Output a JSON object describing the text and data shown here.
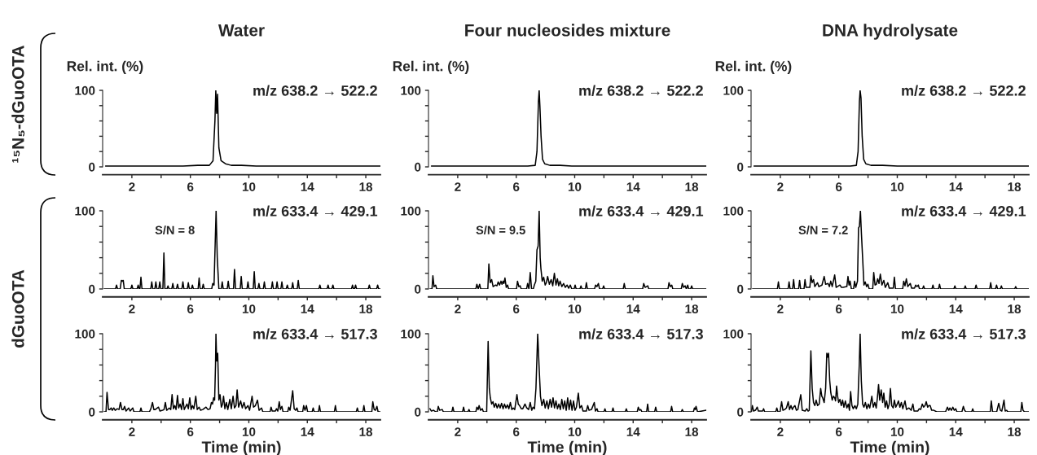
{
  "chart_data": [
    {
      "type": "line",
      "title": "Water",
      "ylabel": "Rel. int. (%)",
      "annotations": [
        "m/z 638.2 → 522.2",
        "¹⁵N₅-dGuoOTA"
      ],
      "xlim": [
        0,
        19
      ],
      "xticks": [
        2,
        {
          "value": 4,
          "label": null
        },
        6,
        {
          "value": 8,
          "label": null
        },
        10,
        {
          "value": 12,
          "label": null
        },
        14,
        {
          "value": 16,
          "label": null
        },
        18
      ],
      "ylim": [
        0,
        100
      ],
      "yticks": [
        0,
        {
          "value": 20,
          "label": null
        },
        {
          "value": 40,
          "label": null
        },
        {
          "value": 60,
          "label": null
        },
        {
          "value": 80,
          "label": null
        },
        100
      ],
      "series": [
        {
          "color": "#000000",
          "x": [
            0.2,
            1.5,
            3,
            4.5,
            5.5,
            6.5,
            7.3,
            7.55,
            7.68,
            7.74,
            7.8,
            7.86,
            7.95,
            8.1,
            8.4,
            8.8,
            9.5,
            10.5,
            13,
            16,
            18.5,
            19
          ],
          "values": [
            1,
            1,
            1,
            1,
            1,
            2,
            2,
            8,
            60,
            100,
            70,
            95,
            25,
            8,
            4,
            2,
            2,
            1,
            1,
            1,
            1,
            1
          ]
        }
      ]
    },
    {
      "type": "line",
      "title": "Four nucleosides mixture",
      "ylabel": "Rel. int. (%)",
      "annotations": [
        "m/z 638.2 → 522.2"
      ],
      "xlim": [
        0,
        19
      ],
      "xticks": [
        2,
        {
          "value": 4,
          "label": null
        },
        6,
        {
          "value": 8,
          "label": null
        },
        10,
        {
          "value": 12,
          "label": null
        },
        14,
        {
          "value": 16,
          "label": null
        },
        18
      ],
      "ylim": [
        0,
        100
      ],
      "yticks": [
        0,
        {
          "value": 20,
          "label": null
        },
        {
          "value": 40,
          "label": null
        },
        {
          "value": 60,
          "label": null
        },
        {
          "value": 80,
          "label": null
        },
        100
      ],
      "series": [
        {
          "color": "#000000",
          "x": [
            0.2,
            3,
            4.2,
            5.5,
            6.8,
            7.3,
            7.42,
            7.52,
            7.57,
            7.62,
            7.7,
            7.8,
            7.95,
            8.3,
            9,
            9.8,
            12,
            15,
            19
          ],
          "values": [
            1,
            1,
            1,
            1,
            1,
            2,
            20,
            85,
            100,
            80,
            40,
            10,
            4,
            2,
            2,
            1,
            1,
            1,
            1
          ]
        }
      ]
    },
    {
      "type": "line",
      "title": "DNA hydrolysate",
      "ylabel": "Rel. int. (%)",
      "annotations": [
        "m/z 638.2 → 522.2"
      ],
      "xlim": [
        0,
        19
      ],
      "xticks": [
        2,
        {
          "value": 4,
          "label": null
        },
        6,
        {
          "value": 8,
          "label": null
        },
        10,
        {
          "value": 12,
          "label": null
        },
        14,
        {
          "value": 16,
          "label": null
        },
        18
      ],
      "ylim": [
        0,
        100
      ],
      "yticks": [
        0,
        {
          "value": 20,
          "label": null
        },
        {
          "value": 40,
          "label": null
        },
        {
          "value": 60,
          "label": null
        },
        {
          "value": 80,
          "label": null
        },
        100
      ],
      "series": [
        {
          "color": "#000000",
          "x": [
            0.2,
            2,
            4,
            5.5,
            6.8,
            7.2,
            7.32,
            7.41,
            7.46,
            7.52,
            7.6,
            7.7,
            7.85,
            8.2,
            9,
            10,
            12,
            15,
            19
          ],
          "values": [
            1,
            1,
            1,
            1,
            1,
            2,
            20,
            85,
            100,
            90,
            40,
            10,
            4,
            2,
            2,
            1,
            1,
            1,
            1
          ]
        }
      ]
    },
    {
      "type": "line",
      "annotations": [
        "m/z 633.4 → 429.1",
        "S/N = 8",
        "dGuoOTA"
      ],
      "xlim": [
        0,
        19
      ],
      "xticks": [
        2,
        {
          "value": 4,
          "label": null
        },
        6,
        {
          "value": 8,
          "label": null
        },
        10,
        {
          "value": 12,
          "label": null
        },
        14,
        {
          "value": 16,
          "label": null
        },
        18
      ],
      "ylim": [
        0,
        100
      ],
      "yticks": [
        0,
        {
          "value": 20,
          "label": null
        },
        {
          "value": 40,
          "label": null
        },
        {
          "value": 60,
          "label": null
        },
        {
          "value": 80,
          "label": null
        },
        100
      ],
      "series": [
        {
          "color": "#000000",
          "x": [
            0.1,
            0.88,
            0.95,
            1.02,
            1.2,
            1.28,
            1.35,
            1.41,
            1.48,
            1.93,
            2.0,
            2.07,
            2.36,
            2.43,
            2.5,
            2.55,
            2.62,
            2.69,
            3.29,
            3.36,
            3.43,
            3.57,
            3.64,
            3.71,
            3.84,
            3.91,
            3.98,
            4.12,
            4.19,
            4.26,
            4.4,
            4.47,
            4.54,
            4.73,
            4.8,
            4.87,
            5.05,
            5.12,
            5.19,
            5.42,
            5.49,
            5.56,
            5.79,
            5.86,
            5.93,
            6.07,
            6.14,
            6.21,
            6.53,
            6.6,
            6.67,
            6.81,
            6.88,
            6.95,
            7.46,
            7.53,
            7.62,
            7.7,
            7.76,
            7.84,
            7.95,
            8.11,
            8.18,
            8.25,
            8.52,
            8.59,
            8.66,
            8.95,
            9.02,
            9.09,
            9.41,
            9.48,
            9.55,
            9.87,
            9.94,
            10.01,
            10.3,
            10.37,
            10.44,
            10.62,
            10.69,
            10.76,
            10.99,
            11.06,
            11.13,
            11.54,
            11.61,
            11.68,
            11.86,
            11.93,
            12.0,
            12.19,
            12.26,
            12.33,
            12.56,
            12.63,
            12.7,
            12.93,
            13.0,
            13.07,
            13.31,
            13.38,
            13.45,
            14.79,
            14.86,
            14.93,
            15.35,
            15.42,
            15.49,
            15.68,
            15.75,
            15.82,
            17.02,
            17.09,
            17.16,
            17.23,
            17.3,
            17.37,
            18.17,
            18.24,
            18.31,
            18.74,
            18.81,
            18.88,
            19
          ],
          "values": [
            0,
            0,
            5,
            0,
            0,
            11,
            10,
            11,
            0,
            0,
            5,
            0,
            0,
            5,
            0,
            0,
            15,
            0,
            0,
            9,
            0,
            0,
            9,
            0,
            0,
            9,
            0,
            0,
            46,
            0,
            0,
            4,
            0,
            0,
            7,
            0,
            0,
            6,
            0,
            0,
            9,
            0,
            0,
            8,
            0,
            0,
            5,
            0,
            0,
            14,
            0,
            0,
            6,
            0,
            0,
            7,
            5,
            60,
            100,
            40,
            0,
            0,
            9,
            0,
            0,
            10,
            0,
            0,
            25,
            0,
            0,
            16,
            0,
            0,
            9,
            0,
            0,
            22,
            0,
            0,
            7,
            0,
            0,
            9,
            0,
            0,
            9,
            0,
            0,
            9,
            0,
            0,
            9,
            0,
            0,
            5,
            0,
            0,
            8,
            0,
            0,
            11,
            0,
            0,
            5,
            0,
            0,
            5,
            0,
            0,
            5,
            0,
            0,
            5,
            0,
            0,
            5,
            0,
            0,
            5,
            0,
            0,
            5,
            0,
            0
          ]
        }
      ]
    },
    {
      "type": "line",
      "annotations": [
        "m/z 633.4 → 429.1",
        "S/N = 9.5"
      ],
      "xlim": [
        0,
        19
      ],
      "xticks": [
        2,
        {
          "value": 4,
          "label": null
        },
        6,
        {
          "value": 8,
          "label": null
        },
        10,
        {
          "value": 12,
          "label": null
        },
        14,
        {
          "value": 16,
          "label": null
        },
        18
      ],
      "ylim": [
        0,
        100
      ],
      "yticks": [
        0,
        {
          "value": 20,
          "label": null
        },
        {
          "value": 40,
          "label": null
        },
        {
          "value": 60,
          "label": null
        },
        {
          "value": 80,
          "label": null
        },
        100
      ],
      "series": [
        {
          "color": "#000000",
          "x": [
            0.1,
            0.24,
            0.3,
            0.38,
            0.49,
            0.56,
            3.24,
            3.31,
            3.4,
            3.5,
            3.57,
            4.06,
            4.13,
            4.22,
            4.32,
            4.42,
            4.59,
            4.68,
            4.77,
            4.86,
            4.96,
            5.03,
            5.1,
            5.16,
            5.23,
            5.32,
            5.41,
            5.48,
            6.02,
            6.09,
            6.18,
            6.27,
            6.34,
            6.71,
            6.78,
            6.87,
            6.96,
            7.05,
            7.17,
            7.24,
            7.34,
            7.42,
            7.5,
            7.57,
            7.64,
            7.69,
            7.78,
            7.88,
            7.98,
            8.06,
            8.15,
            8.27,
            8.39,
            8.5,
            8.61,
            8.72,
            8.82,
            8.91,
            9.0,
            9.12,
            9.24,
            9.36,
            9.48,
            9.59,
            9.7,
            9.8,
            9.96,
            10.03,
            10.1,
            10.36,
            10.43,
            10.5,
            10.73,
            10.8,
            10.87,
            11.36,
            11.43,
            11.52,
            11.62,
            11.7,
            11.91,
            11.98,
            12.05,
            13.32,
            13.39,
            13.46,
            14.65,
            14.72,
            14.82,
            15.0,
            15.07,
            16.38,
            16.45,
            16.54,
            16.64,
            16.71,
            17.29,
            17.36,
            17.45,
            17.55,
            17.64,
            17.73,
            17.8,
            17.93,
            18.0,
            18.07,
            19
          ],
          "values": [
            0,
            0,
            17,
            3,
            5,
            0,
            0,
            6,
            0,
            6,
            0,
            0,
            32,
            8,
            12,
            3,
            5,
            4,
            9,
            5,
            10,
            6,
            10,
            7,
            14,
            2,
            5,
            0,
            0,
            10,
            3,
            4,
            0,
            0,
            7,
            0,
            21,
            0,
            0,
            5,
            10,
            50,
            55,
            100,
            40,
            26,
            10,
            15,
            5,
            8,
            16,
            6,
            12,
            4,
            20,
            5,
            13,
            4,
            10,
            3,
            7,
            2,
            5,
            1,
            5,
            0,
            0,
            5,
            0,
            0,
            4,
            0,
            0,
            8,
            0,
            0,
            5,
            3,
            7,
            0,
            0,
            4,
            0,
            0,
            7,
            0,
            0,
            7,
            2,
            4,
            0,
            0,
            8,
            3,
            5,
            0,
            0,
            7,
            2,
            4,
            0,
            5,
            0,
            0,
            4,
            0,
            0
          ]
        }
      ]
    },
    {
      "type": "line",
      "annotations": [
        "m/z 633.4 → 429.1",
        "S/N = 7.2"
      ],
      "xlim": [
        0,
        19
      ],
      "xticks": [
        2,
        {
          "value": 4,
          "label": null
        },
        6,
        {
          "value": 8,
          "label": null
        },
        10,
        {
          "value": 12,
          "label": null
        },
        14,
        {
          "value": 16,
          "label": null
        },
        18
      ],
      "ylim": [
        0,
        100
      ],
      "yticks": [
        0,
        {
          "value": 20,
          "label": null
        },
        {
          "value": 40,
          "label": null
        },
        {
          "value": 60,
          "label": null
        },
        {
          "value": 80,
          "label": null
        },
        100
      ],
      "series": [
        {
          "color": "#000000",
          "x": [
            0.1,
            1.8,
            1.87,
            1.94,
            2.53,
            2.6,
            2.67,
            2.84,
            2.91,
            2.98,
            3.25,
            3.32,
            3.39,
            3.62,
            3.69,
            3.76,
            4.02,
            4.09,
            4.18,
            4.27,
            4.36,
            4.54,
            4.64,
            4.85,
            5.0,
            5.1,
            5.27,
            5.36,
            5.45,
            5.55,
            5.72,
            5.82,
            6.08,
            6.18,
            6.3,
            6.55,
            6.63,
            6.7,
            6.77,
            6.86,
            7.01,
            7.08,
            7.16,
            7.28,
            7.35,
            7.41,
            7.48,
            7.55,
            7.63,
            7.72,
            7.81,
            7.9,
            7.99,
            8.08,
            8.32,
            8.39,
            8.48,
            8.57,
            8.66,
            8.75,
            8.84,
            8.95,
            9.08,
            9.18,
            9.35,
            9.45,
            9.73,
            9.8,
            9.88,
            10.37,
            10.44,
            10.53,
            10.62,
            10.72,
            10.89,
            10.98,
            11.18,
            11.26,
            11.35,
            11.44,
            11.52,
            11.73,
            11.8,
            11.87,
            12.37,
            12.44,
            12.51,
            12.82,
            12.89,
            12.96,
            13.87,
            13.94,
            14.01,
            14.58,
            14.65,
            14.72,
            15.32,
            15.39,
            15.46,
            16.32,
            16.39,
            16.46,
            16.72,
            16.79,
            16.86,
            17.05,
            17.12,
            17.19,
            18.03,
            18.1,
            18.17,
            19
          ],
          "values": [
            0,
            0,
            9,
            0,
            0,
            9,
            0,
            0,
            12,
            0,
            0,
            11,
            0,
            0,
            12,
            2,
            2,
            17,
            8,
            12,
            3,
            8,
            3,
            5,
            16,
            6,
            7,
            3,
            10,
            3,
            18,
            2,
            5,
            2,
            2,
            3,
            16,
            5,
            10,
            0,
            0,
            10,
            2,
            10,
            78,
            80,
            100,
            70,
            40,
            5,
            9,
            3,
            6,
            0,
            0,
            21,
            5,
            6,
            13,
            7,
            19,
            5,
            11,
            2,
            8,
            1,
            1,
            15,
            0,
            0,
            10,
            4,
            13,
            3,
            7,
            1,
            1,
            5,
            3,
            5,
            0,
            0,
            4,
            0,
            0,
            5,
            0,
            0,
            6,
            0,
            0,
            4,
            0,
            0,
            4,
            0,
            0,
            5,
            0,
            0,
            8,
            0,
            0,
            5,
            0,
            0,
            4,
            0,
            0,
            3,
            0,
            0
          ]
        }
      ]
    },
    {
      "type": "line",
      "xlabel": "Time (min)",
      "annotations": [
        "m/z 633.4 → 517.3"
      ],
      "xlim": [
        0,
        19
      ],
      "xticks": [
        2,
        {
          "value": 4,
          "label": null
        },
        6,
        {
          "value": 8,
          "label": null
        },
        10,
        {
          "value": 12,
          "label": null
        },
        14,
        {
          "value": 16,
          "label": null
        },
        18
      ],
      "ylim": [
        0,
        100
      ],
      "yticks": [
        0,
        {
          "value": 20,
          "label": null
        },
        {
          "value": 40,
          "label": null
        },
        {
          "value": 60,
          "label": null
        },
        {
          "value": 80,
          "label": null
        },
        100
      ],
      "series": [
        {
          "color": "#000000",
          "x": [
            0.1,
            0.23,
            0.3,
            0.4,
            0.5,
            0.58,
            0.66,
            0.76,
            0.86,
            1.0,
            1.12,
            1.22,
            1.32,
            1.42,
            1.5,
            1.6,
            1.78,
            1.88,
            2.06,
            2.14,
            2.55,
            2.62,
            2.69,
            3.2,
            3.3,
            3.41,
            3.5,
            3.6,
            3.82,
            3.92,
            4.1,
            4.2,
            4.29,
            4.38,
            4.56,
            4.66,
            4.75,
            4.84,
            4.93,
            5.02,
            5.12,
            5.2,
            5.3,
            5.4,
            5.49,
            5.58,
            5.77,
            5.86,
            5.96,
            6.05,
            6.14,
            6.24,
            6.37,
            6.47,
            6.6,
            6.7,
            6.85,
            7.07,
            7.2,
            7.35,
            7.44,
            7.52,
            7.59,
            7.66,
            7.72,
            7.75,
            7.8,
            7.87,
            7.95,
            8.03,
            8.12,
            8.2,
            8.27,
            8.36,
            8.46,
            8.56,
            8.7,
            8.8,
            8.92,
            9.02,
            9.12,
            9.2,
            9.3,
            9.44,
            9.55,
            9.67,
            9.78,
            9.94,
            10.05,
            10.22,
            10.32,
            10.45,
            10.59,
            10.7,
            10.87,
            10.96,
            11.45,
            11.52,
            11.6,
            11.82,
            11.89,
            11.98,
            12.08,
            12.16,
            12.26,
            12.34,
            12.66,
            12.73,
            12.82,
            13.0,
            13.1,
            13.2,
            13.29,
            13.37,
            13.68,
            13.75,
            13.84,
            13.94,
            14.02,
            14.33,
            14.4,
            14.47,
            14.76,
            14.83,
            14.9,
            15.85,
            15.92,
            15.99,
            17.35,
            17.42,
            17.49,
            17.8,
            17.87,
            17.94,
            18.41,
            18.48,
            18.57,
            18.66,
            18.76,
            18.84,
            19
          ],
          "values": [
            0,
            0,
            25,
            3,
            3,
            5,
            2,
            5,
            2,
            4,
            3,
            12,
            3,
            3,
            7,
            1,
            5,
            1,
            5,
            0,
            0,
            5,
            0,
            0,
            4,
            12,
            3,
            3,
            6,
            1,
            2,
            3,
            12,
            2,
            5,
            3,
            22,
            4,
            8,
            3,
            21,
            5,
            10,
            3,
            17,
            3,
            10,
            4,
            18,
            3,
            8,
            4,
            20,
            3,
            6,
            2,
            3,
            6,
            3,
            4,
            12,
            10,
            18,
            15,
            60,
            100,
            65,
            75,
            15,
            22,
            6,
            10,
            20,
            4,
            12,
            3,
            16,
            4,
            20,
            5,
            8,
            28,
            6,
            14,
            5,
            12,
            4,
            8,
            2,
            20,
            6,
            8,
            15,
            2,
            5,
            0,
            0,
            6,
            1,
            1,
            4,
            1,
            13,
            3,
            7,
            0,
            0,
            6,
            2,
            27,
            4,
            2,
            5,
            0,
            0,
            8,
            2,
            8,
            0,
            0,
            5,
            0,
            0,
            8,
            0,
            0,
            8,
            0,
            0,
            5,
            0,
            0,
            8,
            0,
            0,
            13,
            3,
            2,
            7,
            0,
            0
          ]
        }
      ]
    },
    {
      "type": "line",
      "xlabel": "Time (min)",
      "annotations": [
        "m/z 633.4 → 517.3"
      ],
      "xlim": [
        0,
        19
      ],
      "xticks": [
        2,
        {
          "value": 4,
          "label": null
        },
        6,
        {
          "value": 8,
          "label": null
        },
        10,
        {
          "value": 12,
          "label": null
        },
        14,
        {
          "value": 16,
          "label": null
        },
        18
      ],
      "ylim": [
        0,
        100
      ],
      "yticks": [
        0,
        {
          "value": 20,
          "label": null
        },
        {
          "value": 40,
          "label": null
        },
        {
          "value": 60,
          "label": null
        },
        {
          "value": 80,
          "label": null
        },
        100
      ],
      "series": [
        {
          "color": "#000000",
          "x": [
            0.1,
            0.2,
            0.35,
            0.5,
            0.6,
            0.67,
            0.76,
            0.94,
            1.02,
            1.6,
            1.67,
            1.74,
            2.33,
            2.4,
            2.47,
            2.7,
            2.77,
            2.84,
            3.24,
            3.31,
            3.4,
            3.46,
            3.56,
            3.68,
            3.76,
            3.98,
            4.08,
            4.16,
            4.23,
            4.32,
            4.41,
            4.5,
            4.6,
            4.7,
            4.8,
            4.9,
            5.0,
            5.1,
            5.2,
            5.3,
            5.4,
            5.5,
            5.6,
            5.7,
            5.8,
            5.9,
            6.05,
            6.14,
            6.23,
            6.35,
            6.45,
            6.6,
            6.72,
            6.85,
            6.96,
            7.06,
            7.15,
            7.25,
            7.35,
            7.47,
            7.56,
            7.66,
            7.76,
            7.88,
            7.98,
            8.1,
            8.2,
            8.32,
            8.42,
            8.52,
            8.62,
            8.72,
            8.82,
            8.92,
            9.02,
            9.12,
            9.22,
            9.32,
            9.42,
            9.52,
            9.62,
            9.72,
            9.82,
            9.92,
            10.02,
            10.12,
            10.25,
            10.35,
            10.47,
            10.57,
            10.8,
            10.89,
            10.98,
            11.15,
            11.34,
            11.42,
            11.53,
            11.6,
            12.0,
            12.07,
            12.14,
            12.55,
            12.62,
            12.69,
            13.46,
            13.53,
            13.6,
            14.28,
            14.35,
            14.43,
            14.52,
            14.6,
            14.92,
            14.99,
            15.06,
            15.47,
            15.54,
            15.61,
            16.56,
            16.63,
            16.7,
            17.29,
            17.36,
            17.43,
            18.12,
            18.19,
            18.25,
            18.3,
            18.4,
            19
          ],
          "values": [
            4,
            1,
            2,
            0,
            0,
            7,
            2,
            3,
            0,
            0,
            6,
            0,
            0,
            6,
            0,
            0,
            3,
            0,
            0,
            6,
            3,
            8,
            2,
            4,
            0,
            0,
            90,
            30,
            18,
            10,
            13,
            6,
            11,
            5,
            10,
            5,
            11,
            4,
            10,
            5,
            9,
            4,
            12,
            3,
            5,
            3,
            22,
            10,
            8,
            4,
            4,
            10,
            5,
            3,
            12,
            2,
            6,
            4,
            30,
            100,
            60,
            20,
            8,
            16,
            5,
            14,
            4,
            16,
            6,
            18,
            5,
            14,
            4,
            10,
            3,
            16,
            4,
            14,
            2,
            18,
            3,
            15,
            2,
            14,
            2,
            6,
            24,
            5,
            8,
            1,
            1,
            8,
            2,
            3,
            12,
            1,
            4,
            0,
            0,
            4,
            0,
            0,
            5,
            0,
            0,
            4,
            0,
            0,
            6,
            2,
            3,
            0,
            0,
            10,
            0,
            0,
            6,
            0,
            0,
            7,
            0,
            0,
            3,
            0,
            0,
            5,
            3,
            7,
            0,
            2
          ]
        }
      ]
    },
    {
      "type": "line",
      "xlabel": "Time (min)",
      "annotations": [
        "m/z 633.4 → 517.3"
      ],
      "xlim": [
        0,
        19
      ],
      "xticks": [
        2,
        {
          "value": 4,
          "label": null
        },
        6,
        {
          "value": 8,
          "label": null
        },
        10,
        {
          "value": 12,
          "label": null
        },
        14,
        {
          "value": 16,
          "label": null
        },
        18
      ],
      "ylim": [
        0,
        100
      ],
      "yticks": [
        0,
        {
          "value": 20,
          "label": null
        },
        {
          "value": 40,
          "label": null
        },
        {
          "value": 60,
          "label": null
        },
        {
          "value": 80,
          "label": null
        },
        100
      ],
      "series": [
        {
          "color": "#000000",
          "x": [
            0.02,
            0.09,
            0.17,
            0.3,
            0.42,
            0.5,
            0.79,
            0.86,
            0.93,
            1.69,
            1.76,
            1.84,
            1.98,
            2.09,
            2.18,
            2.3,
            2.42,
            2.54,
            2.63,
            2.73,
            2.82,
            2.9,
            3.0,
            3.1,
            3.2,
            3.4,
            3.5,
            3.7,
            3.81,
            3.9,
            3.98,
            4.09,
            4.18,
            4.27,
            4.36,
            4.45,
            4.55,
            4.66,
            4.76,
            4.84,
            4.9,
            5.0,
            5.1,
            5.18,
            5.24,
            5.3,
            5.38,
            5.45,
            5.55,
            5.63,
            5.72,
            5.78,
            5.85,
            5.92,
            5.99,
            6.08,
            6.17,
            6.26,
            6.35,
            6.45,
            6.55,
            6.65,
            6.73,
            6.81,
            6.9,
            6.99,
            7.1,
            7.2,
            7.3,
            7.4,
            7.46,
            7.54,
            7.63,
            7.72,
            7.82,
            7.92,
            8.02,
            8.12,
            8.26,
            8.36,
            8.46,
            8.56,
            8.64,
            8.72,
            8.8,
            8.9,
            9.0,
            9.08,
            9.17,
            9.27,
            9.36,
            9.45,
            9.53,
            9.62,
            9.72,
            9.8,
            9.9,
            10.0,
            10.08,
            10.18,
            10.28,
            10.38,
            10.53,
            10.63,
            10.8,
            10.95,
            11.07,
            11.15,
            11.4,
            11.5,
            11.6,
            11.71,
            11.8,
            11.9,
            11.98,
            12.08,
            12.16,
            12.25,
            12.35,
            12.5,
            12.7,
            13.3,
            13.43,
            13.52,
            13.6,
            13.7,
            13.8,
            13.9,
            14.0,
            14.08,
            14.42,
            14.52,
            14.6,
            14.7,
            15.09,
            15.16,
            15.23,
            16.36,
            16.43,
            16.52,
            16.8,
            16.94,
            17.05,
            17.15,
            17.3,
            17.38,
            17.48,
            17.56,
            18.45,
            18.52,
            18.6,
            18.7,
            19
          ],
          "values": [
            0,
            8,
            1,
            2,
            6,
            1,
            1,
            4,
            0,
            0,
            5,
            0,
            0,
            13,
            2,
            3,
            5,
            13,
            3,
            8,
            3,
            6,
            8,
            2,
            3,
            22,
            2,
            1,
            4,
            1,
            2,
            78,
            30,
            12,
            8,
            15,
            8,
            10,
            30,
            20,
            18,
            12,
            30,
            75,
            70,
            75,
            40,
            25,
            15,
            20,
            18,
            14,
            33,
            20,
            12,
            16,
            8,
            15,
            6,
            14,
            5,
            10,
            2,
            26,
            8,
            4,
            8,
            4,
            10,
            60,
            100,
            40,
            10,
            6,
            12,
            4,
            10,
            5,
            20,
            6,
            12,
            5,
            18,
            35,
            15,
            28,
            12,
            24,
            6,
            14,
            4,
            10,
            30,
            8,
            5,
            15,
            6,
            10,
            14,
            6,
            12,
            4,
            14,
            3,
            5,
            2,
            10,
            1,
            1,
            4,
            3,
            10,
            6,
            8,
            13,
            6,
            8,
            8,
            2,
            2,
            0,
            0,
            6,
            2,
            5,
            2,
            6,
            2,
            4,
            0,
            0,
            7,
            2,
            0,
            0,
            4,
            0,
            0,
            14,
            0,
            0,
            11,
            2,
            1,
            15,
            1,
            2,
            0,
            0,
            12,
            2,
            0,
            0
          ]
        }
      ]
    }
  ]
}
